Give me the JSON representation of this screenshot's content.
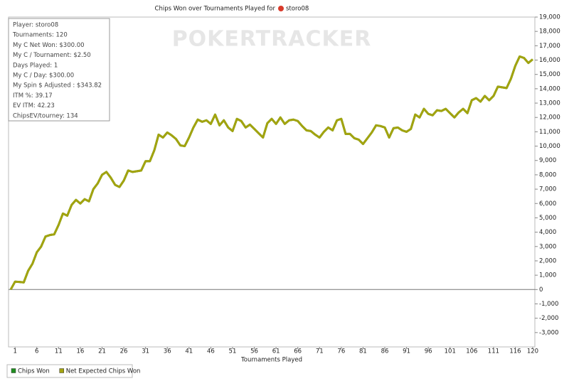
{
  "chart_data": {
    "type": "line",
    "title": "Chips Won over Tournaments Played for",
    "player": "storo08",
    "watermark": "POKERTRACKER",
    "x_label": "Tournaments Played",
    "annotations": [
      "Player: storo08",
      "Tournaments: 120",
      "My C Net Won: $300.00",
      "My C / Tournament: $2.50",
      "Days Played: 1",
      "My C / Day: $300.00",
      "My Spin $ Adjusted : $343.82",
      "ITM %: 39.17",
      "EV ITM: 42.23",
      "ChipsEV/tourney: 134"
    ],
    "x": [
      0,
      1,
      2,
      3,
      4,
      5,
      6,
      7,
      8,
      9,
      10,
      11,
      12,
      13,
      14,
      15,
      16,
      17,
      18,
      19,
      20,
      21,
      22,
      23,
      24,
      25,
      26,
      27,
      28,
      29,
      30,
      31,
      32,
      33,
      34,
      35,
      36,
      37,
      38,
      39,
      40,
      41,
      42,
      43,
      44,
      45,
      46,
      47,
      48,
      49,
      50,
      51,
      52,
      53,
      54,
      55,
      56,
      57,
      58,
      59,
      60,
      61,
      62,
      63,
      64,
      65,
      66,
      67,
      68,
      69,
      70,
      71,
      72,
      73,
      74,
      75,
      76,
      77,
      78,
      79,
      80,
      81,
      82,
      83,
      84,
      85,
      86,
      87,
      88,
      89,
      90,
      91,
      92,
      93,
      94,
      95,
      96,
      97,
      98,
      99,
      100,
      101,
      102,
      103,
      104,
      105,
      106,
      107,
      108,
      109,
      110,
      111,
      112,
      113,
      114,
      115,
      116,
      117,
      118,
      119,
      120
    ],
    "series": [
      {
        "name": "Chips Won",
        "color": "#1f8f1f",
        "values": [
          0,
          550,
          530,
          500,
          1300,
          1800,
          2600,
          3000,
          3700,
          3800,
          3850,
          4500,
          5300,
          5150,
          5900,
          6250,
          6000,
          6300,
          6150,
          7000,
          7400,
          8000,
          8200,
          7800,
          7300,
          7150,
          7600,
          8300,
          8200,
          8250,
          8300,
          8950,
          8950,
          9700,
          10800,
          10600,
          10950,
          10750,
          10500,
          10050,
          10000,
          10600,
          11300,
          11850,
          11700,
          11800,
          11550,
          12200,
          11450,
          11800,
          11300,
          11050,
          11900,
          11750,
          11300,
          11500,
          11200,
          10900,
          10600,
          11600,
          11900,
          11550,
          12000,
          11550,
          11800,
          11850,
          11750,
          11400,
          11100,
          11050,
          10800,
          10600,
          11000,
          11300,
          11100,
          11800,
          11900,
          10850,
          10850,
          10550,
          10450,
          10150,
          10550,
          10950,
          11450,
          11400,
          11300,
          10600,
          11250,
          11300,
          11100,
          11000,
          11200,
          12200,
          12000,
          12600,
          12250,
          12150,
          12500,
          12450,
          12600,
          12300,
          12000,
          12350,
          12600,
          12300,
          13200,
          13350,
          13100,
          13500,
          13200,
          13500,
          14150,
          14100,
          14050,
          14700,
          15600,
          16250,
          16150,
          15800,
          16050
        ]
      },
      {
        "name": "Net Expected Chips Won",
        "color": "#a3a30f",
        "values": [
          0,
          550,
          530,
          500,
          1300,
          1800,
          2600,
          3000,
          3700,
          3800,
          3850,
          4500,
          5300,
          5150,
          5900,
          6250,
          6000,
          6300,
          6150,
          7000,
          7400,
          8000,
          8200,
          7800,
          7300,
          7150,
          7600,
          8300,
          8200,
          8250,
          8300,
          8950,
          8950,
          9700,
          10800,
          10600,
          10950,
          10750,
          10500,
          10050,
          10000,
          10600,
          11300,
          11850,
          11700,
          11800,
          11550,
          12200,
          11450,
          11800,
          11300,
          11050,
          11900,
          11750,
          11300,
          11500,
          11200,
          10900,
          10600,
          11600,
          11900,
          11550,
          12000,
          11550,
          11800,
          11850,
          11750,
          11400,
          11100,
          11050,
          10800,
          10600,
          11000,
          11300,
          11100,
          11800,
          11900,
          10850,
          10850,
          10550,
          10450,
          10150,
          10550,
          10950,
          11450,
          11400,
          11300,
          10600,
          11250,
          11300,
          11100,
          11000,
          11200,
          12200,
          12000,
          12600,
          12250,
          12150,
          12500,
          12450,
          12600,
          12300,
          12000,
          12350,
          12600,
          12300,
          13200,
          13350,
          13100,
          13500,
          13200,
          13500,
          14150,
          14100,
          14050,
          14700,
          15600,
          16250,
          16150,
          15800,
          16050
        ]
      }
    ],
    "xlim": [
      -0.5,
      120.5
    ],
    "xticks": [
      1,
      6,
      11,
      16,
      21,
      26,
      31,
      36,
      41,
      46,
      51,
      56,
      61,
      66,
      71,
      76,
      81,
      86,
      91,
      96,
      101,
      106,
      111,
      116,
      120
    ],
    "ylim": [
      -4000,
      19000
    ],
    "yticks": [
      {
        "value": -3000,
        "label": "-3,000"
      },
      {
        "value": -2000,
        "label": "-2,000"
      },
      {
        "value": -1000,
        "label": "-1,000"
      },
      0,
      {
        "value": 1000,
        "label": "1,000"
      },
      {
        "value": 2000,
        "label": "2,000"
      },
      {
        "value": 3000,
        "label": "3,000"
      },
      {
        "value": 4000,
        "label": "4,000"
      },
      {
        "value": 5000,
        "label": "5,000"
      },
      {
        "value": 6000,
        "label": "6,000"
      },
      {
        "value": 7000,
        "label": "7,000"
      },
      {
        "value": 8000,
        "label": "8,000"
      },
      {
        "value": 9000,
        "label": "9,000"
      },
      {
        "value": 10000,
        "label": "10,000"
      },
      {
        "value": 11000,
        "label": "11,000"
      },
      {
        "value": 12000,
        "label": "12,000"
      },
      {
        "value": 13000,
        "label": "13,000"
      },
      {
        "value": 14000,
        "label": "14,000"
      },
      {
        "value": 15000,
        "label": "15,000"
      },
      {
        "value": 16000,
        "label": "16,000"
      },
      {
        "value": 17000,
        "label": "17,000"
      },
      {
        "value": 18000,
        "label": "18,000"
      },
      {
        "value": 19000,
        "label": "19,000"
      }
    ],
    "grid": false
  }
}
